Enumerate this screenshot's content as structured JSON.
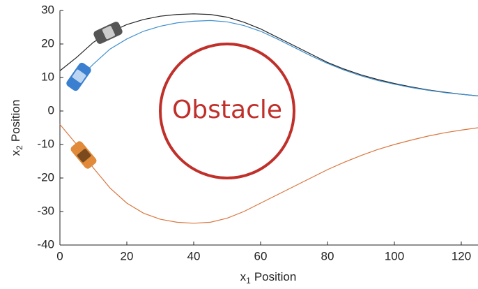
{
  "chart_data": {
    "type": "line",
    "xlabel": {
      "symbol": "x",
      "subscript": "1",
      "text": "Position"
    },
    "ylabel": {
      "symbol": "x",
      "subscript": "2",
      "text": "Position"
    },
    "x": [
      0,
      5,
      10,
      15,
      20,
      25,
      30,
      35,
      40,
      45,
      50,
      55,
      60,
      65,
      70,
      75,
      80,
      85,
      90,
      95,
      100,
      105,
      110,
      115,
      120,
      125
    ],
    "series": [
      {
        "color": "#222222",
        "values": [
          12,
          16,
          20.5,
          23.5,
          25.8,
          27.3,
          28.3,
          28.8,
          29,
          28.8,
          28,
          26.5,
          24.5,
          22,
          19.5,
          17,
          14.5,
          12.5,
          10.8,
          9.4,
          8.2,
          7.2,
          6.3,
          5.6,
          5,
          4.5
        ]
      },
      {
        "color": "#3d8fcf",
        "values": [
          null,
          9,
          14,
          18.5,
          21.5,
          23.8,
          25.3,
          26.3,
          26.8,
          27,
          26.6,
          25.5,
          23.8,
          21.5,
          19,
          16.5,
          14.2,
          12.2,
          10.5,
          9.1,
          8,
          7,
          6.2,
          5.5,
          5,
          4.5
        ]
      },
      {
        "color": "#d9773f",
        "values": [
          -4,
          -10,
          -17,
          -23,
          -27.5,
          -30.5,
          -32.3,
          -33.2,
          -33.5,
          -33.2,
          -32,
          -30,
          -27.5,
          -25,
          -22.5,
          -20,
          -17.5,
          -15.3,
          -13.3,
          -11.5,
          -10,
          -8.7,
          -7.5,
          -6.5,
          -5.7,
          -5
        ]
      }
    ],
    "obstacle": {
      "label": "Obstacle",
      "x": 50,
      "y": 0,
      "radius": 20,
      "color": "#c0302a"
    },
    "xlim": [
      0,
      125
    ],
    "xticks": [
      0,
      20,
      40,
      60,
      80,
      100,
      120
    ],
    "ylim": [
      -40,
      30
    ],
    "yticks": [
      -40,
      -30,
      -20,
      -10,
      0,
      10,
      20,
      30
    ]
  }
}
